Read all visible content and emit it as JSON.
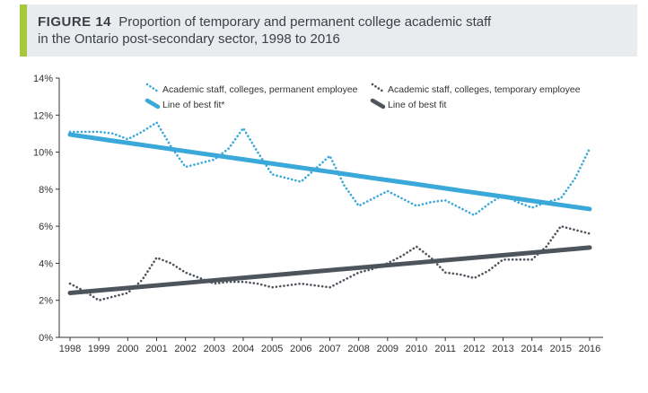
{
  "figure": {
    "label": "FIGURE 14",
    "title_line1": "Proportion of temporary and permanent college academic staff",
    "title_line2": "in the Ontario post-secondary sector, 1998 to 2016"
  },
  "colors": {
    "permanent": "#3aa8d8",
    "temporary": "#4d545c",
    "accent": "#a8c83c",
    "header_bg": "#e9ecef"
  },
  "chart_data": {
    "type": "line",
    "title": "Proportion of temporary and permanent college academic staff in the Ontario post-secondary sector, 1998 to 2016",
    "x": [
      "1998",
      "1998.5",
      "1999",
      "1999.5",
      "2000",
      "2000.5",
      "2001",
      "2001.5",
      "2002",
      "2002.5",
      "2003",
      "2003.5",
      "2004",
      "2004.5",
      "2005",
      "2005.5",
      "2006",
      "2006.5",
      "2007",
      "2007.5",
      "2008",
      "2008.5",
      "2009",
      "2009.5",
      "2010",
      "2010.5",
      "2011",
      "2011.5",
      "2012",
      "2012.5",
      "2013",
      "2013.5",
      "2014",
      "2014.5",
      "2015",
      "2015.5",
      "2016"
    ],
    "x_tick_labels": [
      "1998",
      "1999",
      "2000",
      "2001",
      "2002",
      "2003",
      "2004",
      "2005",
      "2006",
      "2007",
      "2008",
      "2009",
      "2010",
      "2011",
      "2012",
      "2013",
      "2014",
      "2015",
      "2016"
    ],
    "y_tick_labels": [
      "0%",
      "2%",
      "4%",
      "6%",
      "8%",
      "10%",
      "12%",
      "14%"
    ],
    "ylim": [
      0,
      14
    ],
    "grid": false,
    "legend_position": "top",
    "series": [
      {
        "name": "Academic staff, colleges, permanent employee",
        "style": "dotted",
        "color": "#3aa8d8",
        "values": [
          11.1,
          11.1,
          11.1,
          11.0,
          10.7,
          11.1,
          11.6,
          10.3,
          9.2,
          9.4,
          9.6,
          10.2,
          11.3,
          10.0,
          8.8,
          8.6,
          8.4,
          9.1,
          9.8,
          8.2,
          7.1,
          7.5,
          7.9,
          7.5,
          7.1,
          7.3,
          7.4,
          7.0,
          6.6,
          7.2,
          7.7,
          7.3,
          7.0,
          7.3,
          7.5,
          8.6,
          10.2
        ]
      },
      {
        "name": "Line of best fit*",
        "style": "solid",
        "color": "#3aa8d8",
        "values": [
          10.95,
          10.61,
          10.28,
          9.94,
          9.61,
          9.27,
          8.94,
          8.6,
          8.27,
          7.93,
          7.6,
          7.26,
          6.93
        ],
        "x": [
          "1998",
          "1999.5",
          "2001",
          "2002.5",
          "2004",
          "2005.5",
          "2007",
          "2008.5",
          "2010",
          "2011.5",
          "2013",
          "2014.5",
          "2016"
        ]
      },
      {
        "name": "Academic staff, colleges, temporary employee",
        "style": "dotted",
        "color": "#4d545c",
        "values": [
          2.9,
          2.5,
          2.0,
          2.2,
          2.4,
          3.1,
          4.3,
          4.0,
          3.5,
          3.2,
          2.9,
          3.0,
          3.0,
          2.9,
          2.7,
          2.8,
          2.9,
          2.8,
          2.7,
          3.1,
          3.5,
          3.7,
          4.0,
          4.4,
          4.9,
          4.3,
          3.5,
          3.4,
          3.2,
          3.6,
          4.2,
          4.2,
          4.2,
          4.9,
          6.0,
          5.8,
          5.6
        ]
      },
      {
        "name": "Line of best fit",
        "style": "solid",
        "color": "#4d545c",
        "values": [
          2.4,
          2.94,
          3.49,
          4.03,
          4.57,
          4.85
        ],
        "x": [
          "1998",
          "2002",
          "2006",
          "2010",
          "2014",
          "2016"
        ]
      }
    ]
  }
}
